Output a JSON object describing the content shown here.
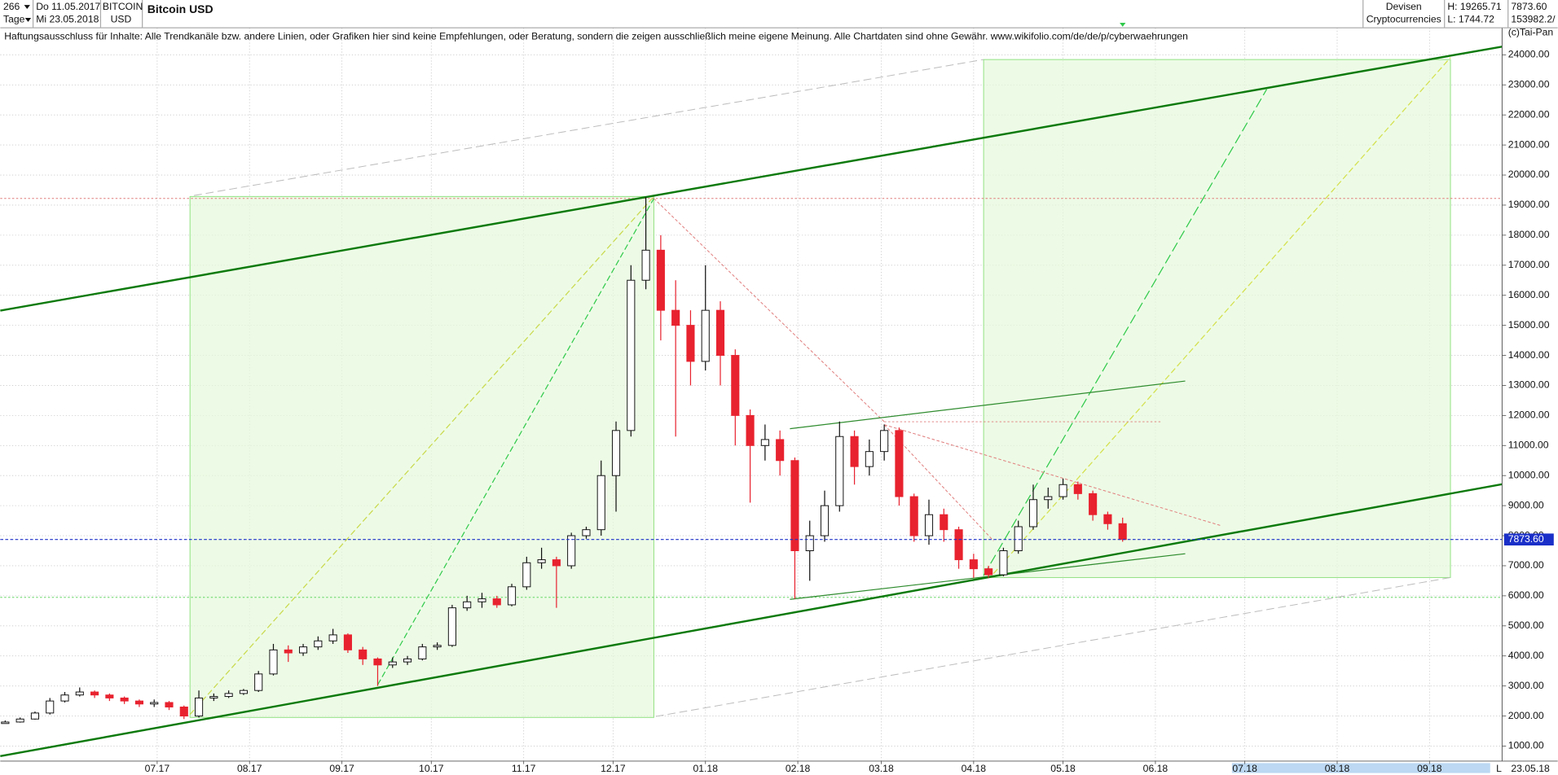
{
  "header": {
    "count": "266",
    "period": "Tage",
    "from": "Do 11.05.2017",
    "to": "Mi 23.05.2018",
    "symbol": "BITCOIN",
    "currency": "USD",
    "group": "Devisen",
    "category": "Cryptocurrencies",
    "high": "H: 19265.71",
    "low": "L: 1744.72",
    "last": "7873.60",
    "volume": "153982.2/",
    "disclaimer": "Haftungsausschluss für Inhalte: Alle Trendkanäle bzw. andere Linien, oder Grafiken hier sind keine Empfehlungen, oder Beratung, sondern die zeigen ausschließlich meine eigene Meinung. Alle Chartdaten sind ohne Gewähr.  www.wikifolio.com/de/de/p/cyberwaehrungen",
    "copyright": "(c)Tai-Pan",
    "date_end": "23.05.18",
    "scale": "L"
  },
  "chart_data": {
    "type": "candlestick",
    "title": "Bitcoin USD",
    "open": [
      1750,
      1800,
      1900,
      2100,
      2500,
      2700,
      2800,
      2700,
      2600,
      2500,
      2400,
      2450,
      2300,
      2000,
      2600,
      2650,
      2750,
      2850,
      3400,
      4200,
      4100,
      4300,
      4500,
      4700,
      4200,
      3900,
      3700,
      3800,
      3900,
      4300,
      4350,
      5600,
      5800,
      5900,
      5700,
      6300,
      7100,
      7200,
      7000,
      8000,
      8200,
      10000,
      11500,
      16500,
      17500,
      15500,
      15000,
      13800,
      15500,
      14000,
      12000,
      11000,
      11200,
      10500,
      7500,
      8000,
      9000,
      11300,
      10300,
      10800,
      11500,
      9300,
      8000,
      8700,
      8200,
      7200,
      6900,
      6700,
      7500,
      8300,
      9200,
      9300,
      9700,
      9400,
      8700,
      8400
    ],
    "high": [
      1850,
      1950,
      2150,
      2600,
      2800,
      2950,
      2850,
      2750,
      2650,
      2550,
      2550,
      2500,
      2350,
      2850,
      2750,
      2850,
      2900,
      3500,
      4400,
      4350,
      4400,
      4650,
      4900,
      4750,
      4300,
      3950,
      3950,
      4000,
      4400,
      4450,
      5700,
      6000,
      6100,
      6000,
      6400,
      7300,
      7600,
      7300,
      8100,
      8300,
      10500,
      11800,
      17000,
      19265.71,
      18000,
      16500,
      15500,
      17000,
      15800,
      14200,
      12200,
      11700,
      11500,
      10600,
      8500,
      9500,
      11800,
      11500,
      11200,
      11700,
      11600,
      9400,
      9200,
      8900,
      8300,
      7400,
      7000,
      7600,
      8500,
      9700,
      9600,
      9900,
      9800,
      9500,
      8800,
      8600
    ],
    "low": [
      1744.72,
      1780,
      1880,
      2050,
      2450,
      2650,
      2600,
      2500,
      2400,
      2300,
      2300,
      2200,
      1900,
      1950,
      2500,
      2600,
      2700,
      2800,
      3350,
      3800,
      4000,
      4200,
      4400,
      4100,
      3700,
      3000,
      3600,
      3700,
      3850,
      4200,
      4300,
      5500,
      5600,
      5600,
      5650,
      6200,
      6900,
      5600,
      6900,
      7900,
      8000,
      8800,
      11300,
      16200,
      14500,
      11300,
      13000,
      13500,
      13000,
      11000,
      9100,
      10500,
      10000,
      5900,
      6500,
      7800,
      8800,
      9700,
      10000,
      10500,
      9000,
      7800,
      7700,
      7800,
      6900,
      6600,
      6600,
      6650,
      7400,
      8200,
      8900,
      9200,
      9200,
      8500,
      8200,
      7800
    ],
    "close": [
      1800,
      1900,
      2100,
      2500,
      2700,
      2800,
      2700,
      2600,
      2500,
      2400,
      2450,
      2300,
      2000,
      2600,
      2650,
      2750,
      2850,
      3400,
      4200,
      4100,
      4300,
      4500,
      4700,
      4200,
      3900,
      3700,
      3800,
      3900,
      4300,
      4350,
      5600,
      5800,
      5900,
      5700,
      6300,
      7100,
      7200,
      7000,
      8000,
      8200,
      10000,
      11500,
      16500,
      17500,
      15500,
      15000,
      13800,
      15500,
      14000,
      12000,
      11000,
      11200,
      10500,
      7500,
      8000,
      9000,
      11300,
      10300,
      10800,
      11500,
      9300,
      8000,
      8700,
      8200,
      7200,
      6900,
      6700,
      7500,
      8300,
      9200,
      9300,
      9700,
      9400,
      8700,
      8400,
      7873.6
    ],
    "up_color": "#ffffff",
    "down_color": "#e8222f",
    "edge_color": "#111111",
    "last_color": "#1a2fc8",
    "xlim": [
      -0.33,
      100.47
    ],
    "xticks": [
      {
        "value": 10.2,
        "label": "07.17"
      },
      {
        "value": 16.4,
        "label": "08.17"
      },
      {
        "value": 22.6,
        "label": "09.17"
      },
      {
        "value": 28.6,
        "label": "10.17"
      },
      {
        "value": 34.8,
        "label": "11.17"
      },
      {
        "value": 40.8,
        "label": "12.17"
      },
      {
        "value": 47,
        "label": "01.18"
      },
      {
        "value": 53.2,
        "label": "02.18"
      },
      {
        "value": 58.8,
        "label": "03.18"
      },
      {
        "value": 65,
        "label": "04.18"
      },
      {
        "value": 71,
        "label": "05.18"
      },
      {
        "value": 77.2,
        "label": "06.18"
      },
      {
        "value": 83.2,
        "label": "07.18"
      },
      {
        "value": 89.4,
        "label": "08.18"
      },
      {
        "value": 95.6,
        "label": "09.18"
      }
    ],
    "ylim": [
      500,
      24900
    ],
    "yticks": [
      {
        "value": 1000,
        "label": "1000.00"
      },
      {
        "value": 2000,
        "label": "2000.00"
      },
      {
        "value": 3000,
        "label": "3000.00"
      },
      {
        "value": 4000,
        "label": "4000.00"
      },
      {
        "value": 5000,
        "label": "5000.00"
      },
      {
        "value": 6000,
        "label": "6000.00"
      },
      {
        "value": 7000,
        "label": "7000.00"
      },
      {
        "value": 8000,
        "label": "8000.00"
      },
      {
        "value": 9000,
        "label": "9000.00"
      },
      {
        "value": 10000,
        "label": "10000.00"
      },
      {
        "value": 11000,
        "label": "11000.00"
      },
      {
        "value": 12000,
        "label": "12000.00"
      },
      {
        "value": 13000,
        "label": "13000.00"
      },
      {
        "value": 14000,
        "label": "14000.00"
      },
      {
        "value": 15000,
        "label": "15000.00"
      },
      {
        "value": 16000,
        "label": "16000.00"
      },
      {
        "value": 17000,
        "label": "17000.00"
      },
      {
        "value": 18000,
        "label": "18000.00"
      },
      {
        "value": 19000,
        "label": "19000.00"
      },
      {
        "value": 20000,
        "label": "20000.00"
      },
      {
        "value": 21000,
        "label": "21000.00"
      },
      {
        "value": 22000,
        "label": "22000.00"
      },
      {
        "value": 23000,
        "label": "23000.00"
      },
      {
        "value": 24000,
        "label": "24000.00"
      }
    ],
    "grid": true
  }
}
